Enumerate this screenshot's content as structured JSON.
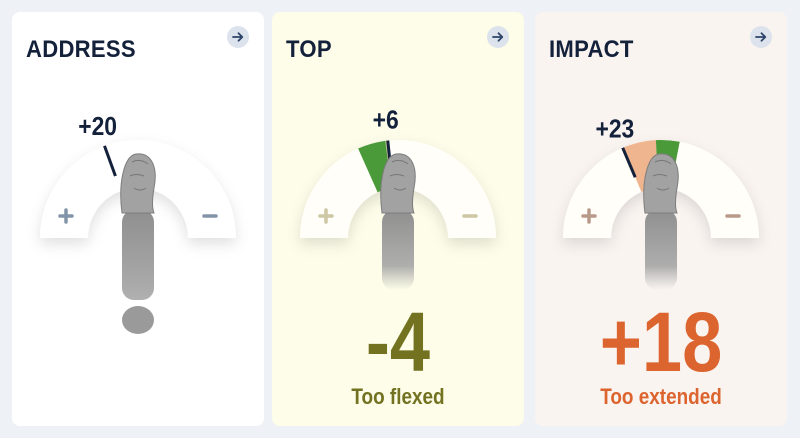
{
  "colors": {
    "page_bg": "#eef1f5",
    "title": "#14213a",
    "needle": "#14213a",
    "green": "#4a9a3a",
    "peach": "#efb58f",
    "tan": "#c9c49a"
  },
  "cards": [
    {
      "title": "ADDRESS",
      "value_label": "+20",
      "value": 20,
      "bg": "#ffffff",
      "sign_color": "#8494a8",
      "bands": [],
      "result": "",
      "verdict": "",
      "accent": "#14213a",
      "arm_fade": false
    },
    {
      "title": "TOP",
      "value_label": "+6",
      "value": 6,
      "bg": "#fdfde9",
      "sign_color": "#cdc7a6",
      "bands": [
        {
          "from": 7,
          "to": 24,
          "color": "#4a9a3a"
        },
        {
          "from": 6,
          "to": 7.5,
          "color": "#c9c49a"
        }
      ],
      "result": "-4",
      "verdict": "Too flexed",
      "accent": "#737220",
      "arm_fade": true
    },
    {
      "title": "IMPACT",
      "value_label": "+23",
      "value": 23,
      "bg": "#faf4f1",
      "sign_color": "#b89a8a",
      "bands": [
        {
          "from": 3,
          "to": 23,
          "color": "#efb58f"
        },
        {
          "from": -11,
          "to": 3,
          "color": "#4a9a3a"
        }
      ],
      "result": "+18",
      "verdict": "Too extended",
      "accent": "#dc642f",
      "arm_fade": true
    }
  ],
  "icons": {
    "arrow": "arrow-right-icon",
    "plus": "plus-icon",
    "minus": "minus-icon",
    "arm": "hand-arm-icon"
  }
}
